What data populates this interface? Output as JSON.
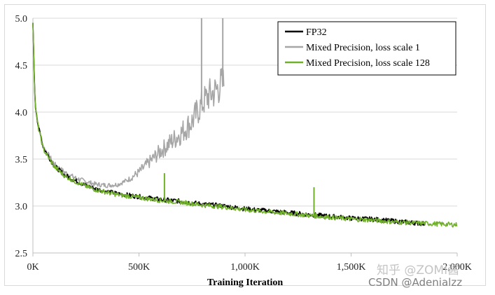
{
  "chart_data": {
    "type": "line",
    "xlabel": "Training Iteration",
    "ylabel": "",
    "xlim": [
      0,
      2000000
    ],
    "ylim": [
      2.5,
      5.0
    ],
    "x_ticks": [
      {
        "value": 0,
        "label": "0K"
      },
      {
        "value": 500000,
        "label": "500K"
      },
      {
        "value": 1000000,
        "label": "1,000K"
      },
      {
        "value": 1500000,
        "label": "1,500K"
      },
      {
        "value": 2000000,
        "label": "2,000K"
      }
    ],
    "y_ticks": [
      {
        "value": 2.5,
        "label": "2.5"
      },
      {
        "value": 3.0,
        "label": "3.0"
      },
      {
        "value": 3.5,
        "label": "3.5"
      },
      {
        "value": 4.0,
        "label": "4.0"
      },
      {
        "value": 4.5,
        "label": "4.5"
      },
      {
        "value": 5.0,
        "label": "5.0"
      }
    ],
    "grid": "horizontal",
    "legend_position": "top-right",
    "series": [
      {
        "name": "FP32",
        "color": "#000000",
        "x": [
          0,
          10000,
          25000,
          50000,
          100000,
          150000,
          200000,
          250000,
          300000,
          400000,
          500000,
          600000,
          700000,
          800000,
          900000,
          1000000,
          1100000,
          1200000,
          1300000,
          1400000,
          1500000,
          1600000,
          1700000,
          1800000,
          1850000
        ],
        "y": [
          4.95,
          4.1,
          3.85,
          3.62,
          3.43,
          3.33,
          3.27,
          3.22,
          3.18,
          3.13,
          3.1,
          3.07,
          3.05,
          3.02,
          3.0,
          2.97,
          2.95,
          2.93,
          2.91,
          2.89,
          2.87,
          2.86,
          2.84,
          2.82,
          2.81
        ]
      },
      {
        "name": "Mixed Precision, loss scale 1",
        "color": "#a6a6a6",
        "x": [
          0,
          10000,
          25000,
          50000,
          100000,
          150000,
          200000,
          250000,
          300000,
          350000,
          400000,
          450000,
          500000,
          550000,
          600000,
          650000,
          700000,
          750000,
          780000,
          800000,
          830000,
          860000,
          880000,
          900000
        ],
        "y": [
          4.95,
          4.1,
          3.86,
          3.63,
          3.45,
          3.36,
          3.3,
          3.26,
          3.23,
          3.22,
          3.23,
          3.28,
          3.36,
          3.47,
          3.58,
          3.68,
          3.78,
          3.9,
          4.02,
          4.1,
          4.18,
          4.22,
          4.28,
          4.3
        ]
      },
      {
        "name": "Mixed Precision, loss scale 128",
        "color": "#70b02a",
        "x": [
          0,
          10000,
          25000,
          50000,
          100000,
          150000,
          200000,
          250000,
          300000,
          400000,
          500000,
          600000,
          700000,
          800000,
          900000,
          1000000,
          1100000,
          1200000,
          1300000,
          1400000,
          1500000,
          1600000,
          1700000,
          1800000,
          1900000,
          2000000
        ],
        "y": [
          4.95,
          4.08,
          3.84,
          3.6,
          3.42,
          3.32,
          3.26,
          3.21,
          3.17,
          3.12,
          3.09,
          3.06,
          3.04,
          3.01,
          2.99,
          2.96,
          2.94,
          2.92,
          2.9,
          2.88,
          2.86,
          2.85,
          2.83,
          2.82,
          2.81,
          2.8
        ]
      }
    ],
    "annotations": [
      {
        "series": "Mixed Precision, loss scale 128",
        "x": 620000,
        "y": 3.35,
        "note": "spike"
      },
      {
        "series": "Mixed Precision, loss scale 128",
        "x": 1325000,
        "y": 3.2,
        "note": "spike"
      },
      {
        "series": "Mixed Precision, loss scale 1",
        "x": 795000,
        "y": 5.0,
        "note": "spike"
      },
      {
        "series": "Mixed Precision, loss scale 1",
        "x": 895000,
        "y": 5.0,
        "note": "spike"
      }
    ]
  },
  "watermarks": {
    "line1": "知乎 @ZOMI酱",
    "line2": "CSDN @Adenialzz"
  }
}
